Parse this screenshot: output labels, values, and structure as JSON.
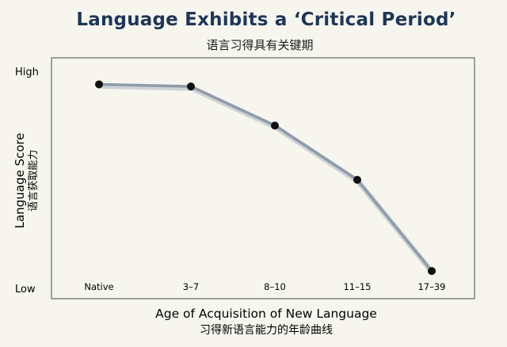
{
  "title": "Language Exhibits a ‘Critical Period’",
  "subtitle_cn": "语言习得具有关键期",
  "chart_data": {
    "type": "line",
    "categories": [
      "Native",
      "3–7",
      "8–10",
      "11–15",
      "17–39"
    ],
    "series": [
      {
        "values": [
          0.94,
          0.93,
          0.75,
          0.5,
          0.08
        ]
      }
    ],
    "ylim": [
      0,
      1
    ],
    "y_ticks": [
      {
        "label": "High",
        "value": 1
      },
      {
        "label": "Low",
        "value": 0
      }
    ],
    "xlabel": "Age of Acquisition of New Language",
    "xlabel_cn": "习得新语言能力的年龄曲线",
    "ylabel": "Language Score",
    "ylabel_cn": "语言获取能力",
    "grid": false,
    "line_color": "#8e9ba8",
    "marker_color": "#111111"
  }
}
